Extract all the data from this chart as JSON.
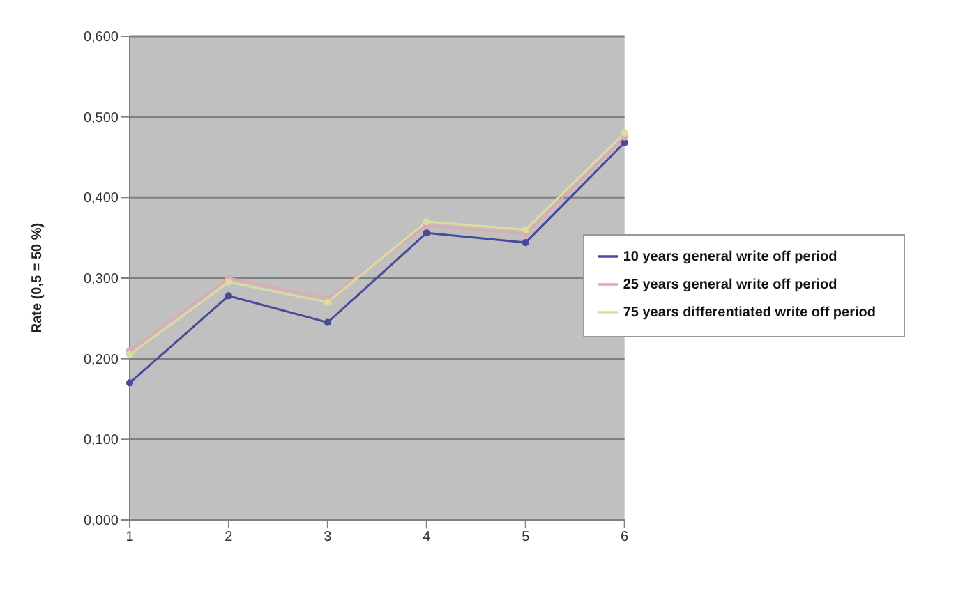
{
  "chart_data": {
    "type": "line",
    "ylabel": "Rate (0,5 = 50 %)",
    "categories": [
      "1",
      "2",
      "3",
      "4",
      "5",
      "6"
    ],
    "series": [
      {
        "name": "10 years general write off period",
        "color": "#4a4a9a",
        "values": [
          0.17,
          0.278,
          0.245,
          0.356,
          0.344,
          0.468
        ]
      },
      {
        "name": "25 years general write off period",
        "color": "#e0a8b0",
        "values": [
          0.21,
          0.3,
          0.275,
          0.365,
          0.355,
          0.475
        ]
      },
      {
        "name": "75 years differentiated write off period",
        "color": "#dcdca0",
        "values": [
          0.205,
          0.295,
          0.27,
          0.37,
          0.36,
          0.48
        ]
      }
    ],
    "ylim": [
      0,
      0.6
    ],
    "yticks": [
      {
        "value": 0,
        "label": "0,000"
      },
      {
        "value": 0.1,
        "label": "0,100"
      },
      {
        "value": 0.2,
        "label": "0,200"
      },
      {
        "value": 0.3,
        "label": "0,300"
      },
      {
        "value": 0.4,
        "label": "0,400"
      },
      {
        "value": 0.5,
        "label": "0,500"
      },
      {
        "value": 0.6,
        "label": "0,600"
      }
    ],
    "grid": "y",
    "legend": "right",
    "marker": "circle"
  }
}
